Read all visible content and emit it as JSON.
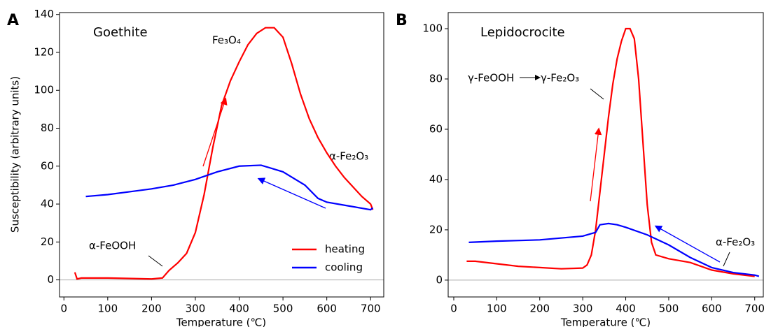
{
  "chart_data": [
    {
      "type": "line",
      "panel_label": "A",
      "ylabel": "Susceptibility (arbitrary units)",
      "xlabel": "Temperature (℃)",
      "xlim": [
        -10,
        730
      ],
      "ylim": [
        -9,
        141
      ],
      "xticks": [
        0,
        100,
        200,
        300,
        400,
        500,
        600,
        700
      ],
      "yticks": [
        0,
        20,
        40,
        60,
        80,
        100,
        120,
        140
      ],
      "hline": 0,
      "legend": "lower right",
      "annotations": [
        "Goethite",
        "Fe₃O₄",
        "α-Fe₂O₃",
        "α-FeOOH"
      ],
      "series": [
        {
          "name": "heating",
          "color": "#ff0000",
          "x": [
            25,
            30,
            40,
            100,
            200,
            225,
            240,
            260,
            280,
            300,
            320,
            340,
            360,
            380,
            400,
            420,
            440,
            460,
            480,
            500,
            520,
            540,
            560,
            580,
            600,
            620,
            640,
            660,
            680,
            700,
            705
          ],
          "values": [
            4,
            0.5,
            1,
            1,
            0.5,
            1,
            5,
            9,
            14,
            25,
            45,
            70,
            92,
            105,
            115,
            124,
            130,
            133,
            133,
            128,
            114,
            98,
            85,
            75,
            67,
            60,
            54,
            49,
            44,
            40,
            37
          ]
        },
        {
          "name": "cooling",
          "color": "#0000ff",
          "x": [
            50,
            100,
            150,
            200,
            250,
            300,
            350,
            400,
            450,
            500,
            550,
            580,
            600,
            650,
            700,
            705
          ],
          "values": [
            44,
            45,
            46.5,
            48,
            50,
            53,
            57,
            60,
            60.5,
            57,
            50,
            43,
            41,
            39,
            37,
            38
          ]
        }
      ]
    },
    {
      "type": "line",
      "panel_label": "B",
      "xlabel": "Temperature (℃)",
      "xlim": [
        -13,
        720
      ],
      "ylim": [
        -6.7,
        106.4
      ],
      "xticks": [
        0,
        100,
        200,
        300,
        400,
        500,
        600,
        700
      ],
      "yticks": [
        0,
        20,
        40,
        60,
        80,
        100
      ],
      "hline": 0,
      "annotations": [
        "Lepidocrocite",
        "γ-FeOOH",
        "γ-Fe₂O₃",
        "α-Fe₂O₃"
      ],
      "series": [
        {
          "name": "heating",
          "color": "#ff0000",
          "x": [
            30,
            50,
            100,
            150,
            200,
            250,
            300,
            310,
            320,
            330,
            340,
            350,
            360,
            370,
            380,
            390,
            400,
            410,
            420,
            430,
            440,
            450,
            460,
            470,
            500,
            550,
            600,
            650,
            700
          ],
          "values": [
            7.5,
            7.5,
            6.5,
            5.5,
            5,
            4.5,
            4.8,
            6,
            10,
            20,
            35,
            50,
            65,
            78,
            88,
            95,
            100,
            100,
            96,
            80,
            55,
            30,
            15,
            10,
            8.5,
            7,
            4,
            2.5,
            1.5
          ]
        },
        {
          "name": "cooling",
          "color": "#0000ff",
          "x": [
            35,
            100,
            200,
            300,
            330,
            340,
            360,
            380,
            400,
            450,
            500,
            550,
            600,
            650,
            700,
            710
          ],
          "values": [
            15,
            15.5,
            16,
            17.5,
            19,
            22,
            22.5,
            22,
            21,
            18,
            14,
            9,
            5,
            3,
            2,
            1.5
          ]
        }
      ]
    }
  ]
}
